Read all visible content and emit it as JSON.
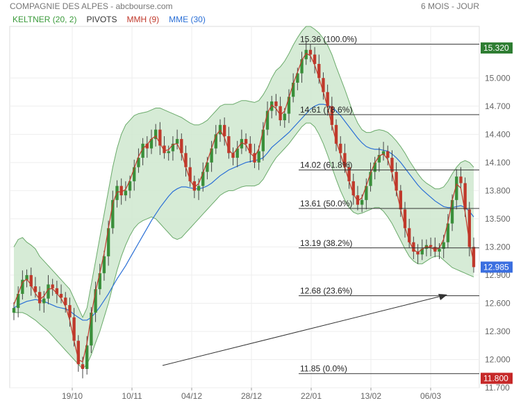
{
  "header": {
    "title": "COMPAGNIE DES ALPES - abcbourse.com",
    "period": "6 MOIS - JOUR"
  },
  "legend": [
    {
      "label": "KELTNER (20, 2)",
      "color": "#3a9a3a"
    },
    {
      "label": "PIVOTS",
      "color": "#333333"
    },
    {
      "label": "MMH (9)",
      "color": "#c0392b"
    },
    {
      "label": "MME (30)",
      "color": "#2a6fd6"
    }
  ],
  "colors": {
    "up_candle": "#3a8f3a",
    "down_candle": "#c0392b",
    "keltner_fill": "#cfe8cf",
    "keltner_line": "#6aaa6a",
    "mme_line": "#2a6fd6",
    "mmh_line": "#c0392b",
    "fib_line": "#333333",
    "grid": "#eeeeee",
    "top_badge": "#2e7d32",
    "last_badge": "#3b6fe0",
    "bottom_badge": "#c62828"
  },
  "chart_data": {
    "type": "candlestick",
    "x_ticks": [
      "19/10",
      "10/11",
      "04/12",
      "28/12",
      "22/01",
      "13/02",
      "06/03"
    ],
    "y_ticks": [
      "15.000",
      "14.700",
      "14.400",
      "14.100",
      "13.800",
      "13.500",
      "13.200",
      "12.900",
      "12.600",
      "12.300",
      "12.000",
      "11.700"
    ],
    "ylim": [
      11.7,
      15.55
    ],
    "fib_levels": [
      {
        "value": 15.36,
        "label": "15.36",
        "pct": "(100.0%)"
      },
      {
        "value": 14.61,
        "label": "14.61",
        "pct": "(78.6%)"
      },
      {
        "value": 14.02,
        "label": "14.02",
        "pct": "(61.8%)"
      },
      {
        "value": 13.61,
        "label": "13.61",
        "pct": "(50.0%)"
      },
      {
        "value": 13.19,
        "label": "13.19",
        "pct": "(38.2%)"
      },
      {
        "value": 12.68,
        "label": "12.68",
        "pct": "(23.6%)"
      },
      {
        "value": 11.85,
        "label": "11.85",
        "pct": "(0.0%)"
      }
    ],
    "badges": {
      "top": "15.320",
      "last": "12.985",
      "bottom": "11.800"
    },
    "closes": [
      12.55,
      12.7,
      12.85,
      12.9,
      12.78,
      12.72,
      12.6,
      12.65,
      12.8,
      12.76,
      12.7,
      12.66,
      12.58,
      12.45,
      12.2,
      11.95,
      11.9,
      12.15,
      12.5,
      12.75,
      12.92,
      13.1,
      13.4,
      13.7,
      13.85,
      13.75,
      13.8,
      13.9,
      14.05,
      14.15,
      14.3,
      14.25,
      14.35,
      14.45,
      14.28,
      14.2,
      14.22,
      14.3,
      14.35,
      14.2,
      14.05,
      13.9,
      13.8,
      13.85,
      14.0,
      14.1,
      14.25,
      14.4,
      14.5,
      14.38,
      14.2,
      14.15,
      14.25,
      14.35,
      14.3,
      14.2,
      14.1,
      14.22,
      14.45,
      14.65,
      14.75,
      14.7,
      14.55,
      14.62,
      14.8,
      14.95,
      15.05,
      15.2,
      15.3,
      15.25,
      15.15,
      15.0,
      14.85,
      14.7,
      14.5,
      14.3,
      14.2,
      14.05,
      13.9,
      13.75,
      13.65,
      13.7,
      13.85,
      14.0,
      14.1,
      14.18,
      14.22,
      14.15,
      14.0,
      13.8,
      13.6,
      13.4,
      13.25,
      13.15,
      13.12,
      13.18,
      13.22,
      13.2,
      13.15,
      13.18,
      13.25,
      13.45,
      13.7,
      13.95,
      13.88,
      13.6,
      13.2,
      12.985
    ],
    "keltner_upper": [
      13.2,
      13.28,
      13.3,
      13.25,
      13.22,
      13.18,
      13.1,
      13.05,
      13.0,
      12.95,
      12.9,
      12.85,
      12.8,
      12.75,
      12.65,
      12.55,
      12.45,
      12.55,
      12.8,
      13.05,
      13.3,
      13.55,
      13.8,
      14.05,
      14.25,
      14.4,
      14.5,
      14.55,
      14.6,
      14.62,
      14.63,
      14.64,
      14.66,
      14.68,
      14.68,
      14.66,
      14.64,
      14.62,
      14.6,
      14.58,
      14.55,
      14.52,
      14.5,
      14.5,
      14.52,
      14.55,
      14.6,
      14.65,
      14.7,
      14.72,
      14.72,
      14.72,
      14.74,
      14.76,
      14.76,
      14.75,
      14.74,
      14.76,
      14.82,
      14.9,
      15.0,
      15.08,
      15.12,
      15.18,
      15.26,
      15.35,
      15.43,
      15.5,
      15.55,
      15.55,
      15.52,
      15.48,
      15.42,
      15.35,
      15.25,
      15.12,
      15.0,
      14.88,
      14.75,
      14.62,
      14.52,
      14.45,
      14.42,
      14.42,
      14.44,
      14.45,
      14.44,
      14.42,
      14.38,
      14.33,
      14.27,
      14.2,
      14.12,
      14.05,
      13.98,
      13.92,
      13.88,
      13.85,
      13.82,
      13.82,
      13.84,
      13.9,
      13.98,
      14.05,
      14.1,
      14.12,
      14.1,
      14.05
    ],
    "keltner_lower": [
      12.5,
      12.5,
      12.5,
      12.48,
      12.45,
      12.42,
      12.38,
      12.34,
      12.3,
      12.25,
      12.2,
      12.15,
      12.1,
      12.05,
      12.0,
      11.95,
      11.9,
      11.95,
      12.05,
      12.18,
      12.3,
      12.45,
      12.6,
      12.78,
      12.95,
      13.1,
      13.22,
      13.32,
      13.4,
      13.45,
      13.48,
      13.5,
      13.52,
      13.5,
      13.45,
      13.4,
      13.35,
      13.3,
      13.28,
      13.3,
      13.35,
      13.4,
      13.45,
      13.5,
      13.55,
      13.6,
      13.65,
      13.7,
      13.75,
      13.78,
      13.8,
      13.8,
      13.82,
      13.84,
      13.85,
      13.85,
      13.85,
      13.87,
      13.92,
      14.0,
      14.08,
      14.15,
      14.2,
      14.25,
      14.3,
      14.36,
      14.42,
      14.48,
      14.52,
      14.52,
      14.48,
      14.4,
      14.3,
      14.18,
      14.05,
      13.92,
      13.8,
      13.7,
      13.62,
      13.57,
      13.55,
      13.56,
      13.58,
      13.6,
      13.62,
      13.62,
      13.58,
      13.52,
      13.45,
      13.36,
      13.27,
      13.18,
      13.1,
      13.05,
      13.02,
      13.02,
      13.05,
      13.08,
      13.1,
      13.1,
      13.06,
      13.02,
      12.98,
      12.96,
      12.94,
      12.92,
      12.9,
      12.88
    ],
    "mme": [
      12.55,
      12.58,
      12.6,
      12.62,
      12.63,
      12.64,
      12.63,
      12.62,
      12.6,
      12.58,
      12.56,
      12.55,
      12.54,
      12.52,
      12.48,
      12.45,
      12.42,
      12.42,
      12.45,
      12.5,
      12.56,
      12.63,
      12.7,
      12.78,
      12.86,
      12.93,
      13.0,
      13.08,
      13.16,
      13.24,
      13.32,
      13.4,
      13.48,
      13.55,
      13.62,
      13.68,
      13.74,
      13.79,
      13.82,
      13.84,
      13.84,
      13.83,
      13.82,
      13.82,
      13.83,
      13.85,
      13.88,
      13.92,
      13.96,
      13.99,
      14.02,
      14.04,
      14.06,
      14.08,
      14.1,
      14.11,
      14.12,
      14.13,
      14.15,
      14.2,
      14.26,
      14.3,
      14.34,
      14.38,
      14.42,
      14.47,
      14.52,
      14.57,
      14.62,
      14.67,
      14.7,
      14.72,
      14.72,
      14.71,
      14.69,
      14.65,
      14.6,
      14.54,
      14.48,
      14.42,
      14.36,
      14.31,
      14.27,
      14.25,
      14.24,
      14.24,
      14.23,
      14.22,
      14.19,
      14.15,
      14.1,
      14.04,
      13.98,
      13.92,
      13.86,
      13.81,
      13.77,
      13.73,
      13.69,
      13.66,
      13.63,
      13.62,
      13.62,
      13.63,
      13.64,
      13.62,
      13.58,
      13.52
    ]
  }
}
